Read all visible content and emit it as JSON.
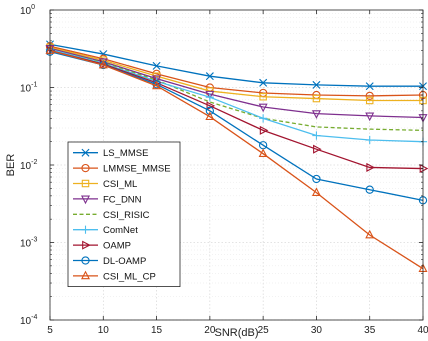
{
  "chart_data": {
    "type": "line",
    "xlabel": "SNR(dB)",
    "ylabel": "BER",
    "x": [
      5,
      10,
      15,
      20,
      25,
      30,
      35,
      40
    ],
    "xlim": [
      5,
      40
    ],
    "ylim": [
      0.0001,
      1
    ],
    "yscale": "log",
    "x_ticks": [
      5,
      10,
      15,
      20,
      25,
      30,
      35,
      40
    ],
    "y_ticks": [
      {
        "base": "10",
        "exp": "0",
        "value": 1
      },
      {
        "base": "10",
        "exp": "-1",
        "value": 0.1
      },
      {
        "base": "10",
        "exp": "-2",
        "value": 0.01
      },
      {
        "base": "10",
        "exp": "-3",
        "value": 0.001
      },
      {
        "base": "10",
        "exp": "-4",
        "value": 0.0001
      }
    ],
    "grid": true,
    "legend_position": "lower-left",
    "series": [
      {
        "name": "LS_MMSE",
        "color": "#0072bd",
        "marker": "x",
        "dash": "solid",
        "values": [
          0.36,
          0.27,
          0.19,
          0.14,
          0.115,
          0.108,
          0.104,
          0.104
        ]
      },
      {
        "name": "LMMSE_MMSE",
        "color": "#d95319",
        "marker": "circle",
        "dash": "solid",
        "values": [
          0.34,
          0.235,
          0.15,
          0.1,
          0.085,
          0.08,
          0.078,
          0.08
        ]
      },
      {
        "name": "CSI_ML",
        "color": "#edb120",
        "marker": "square",
        "dash": "solid",
        "values": [
          0.33,
          0.225,
          0.14,
          0.09,
          0.076,
          0.072,
          0.068,
          0.068
        ]
      },
      {
        "name": "FC_DNN",
        "color": "#7e2f8e",
        "marker": "triangle-down",
        "dash": "solid",
        "values": [
          0.32,
          0.215,
          0.13,
          0.082,
          0.056,
          0.046,
          0.043,
          0.041
        ]
      },
      {
        "name": "CSI_RISIC",
        "color": "#77ac30",
        "marker": "none",
        "dash": "dashed",
        "values": [
          0.31,
          0.21,
          0.125,
          0.065,
          0.04,
          0.031,
          0.029,
          0.028
        ]
      },
      {
        "name": "ComNet",
        "color": "#4dbeee",
        "marker": "plus",
        "dash": "solid",
        "values": [
          0.31,
          0.205,
          0.12,
          0.075,
          0.04,
          0.024,
          0.021,
          0.02
        ]
      },
      {
        "name": "OAMP",
        "color": "#a2142f",
        "marker": "triangle-right",
        "dash": "solid",
        "values": [
          0.3,
          0.2,
          0.115,
          0.058,
          0.028,
          0.016,
          0.0093,
          0.009
        ]
      },
      {
        "name": "DL-OAMP",
        "color": "#0072bd",
        "marker": "circle",
        "dash": "solid",
        "values": [
          0.29,
          0.195,
          0.11,
          0.05,
          0.018,
          0.0066,
          0.0048,
          0.0035
        ]
      },
      {
        "name": "CSI_ML_CP",
        "color": "#d95319",
        "marker": "triangle-up",
        "dash": "solid",
        "values": [
          0.3,
          0.195,
          0.105,
          0.042,
          0.014,
          0.0044,
          0.00125,
          0.00046
        ]
      }
    ]
  }
}
